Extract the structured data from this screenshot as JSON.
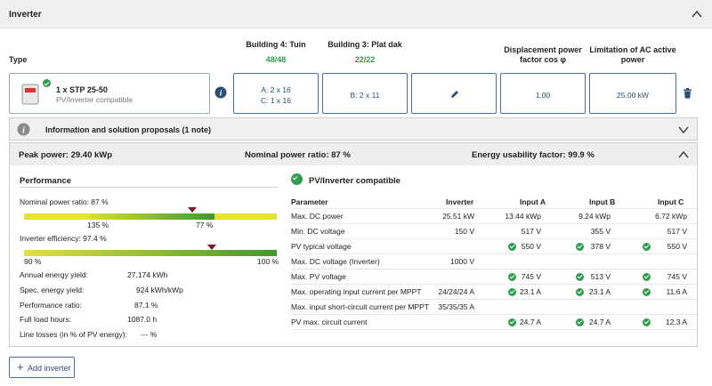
{
  "header": {
    "title": "Inverter"
  },
  "columns": {
    "type": "Type",
    "building4": {
      "name": "Building 4: Tuin",
      "count": "48/48"
    },
    "building3": {
      "name": "Building 3: Plat dak",
      "count": "22/22"
    },
    "displacement": "Displacement power factor cos φ",
    "limitation": "Limitation of AC active power"
  },
  "inverter": {
    "name": "1 x STP 25-50",
    "status": "PV/Inverter compatible",
    "b4_line1": "A: 2 x 16",
    "b4_line2": "C: 1 x 16",
    "b3_line1": "B: 2 x 11",
    "cos_phi": "1.00",
    "ac_limit": "25.00 kW"
  },
  "info_bar": {
    "label": "Information and solution proposals (1 note)"
  },
  "summary": {
    "peak_power": "Peak power: 29.40 kWp",
    "nominal_ratio": "Nominal power ratio: 87 %",
    "energy_factor": "Energy usability factor: 99.9 %"
  },
  "performance": {
    "title": "Performance",
    "nominal_label": "Nominal power ratio: 87 %",
    "nominal_left": "135 %",
    "nominal_right": "77 %",
    "nominal_value_pct": 87,
    "efficiency_label": "Inverter efficiency: 97.4 %",
    "efficiency_left": "90 %",
    "efficiency_right": "100 %",
    "efficiency_value_pct": 97.4,
    "rows": [
      {
        "label": "Annual energy yield:",
        "value": "27,174 kWh"
      },
      {
        "label": "Spec. energy yield:",
        "value": "924 kWh/kWp"
      },
      {
        "label": "Performance ratio:",
        "value": "87.1 %"
      },
      {
        "label": "Full load hours:",
        "value": "1087.0 h"
      },
      {
        "label": "Line losses (in % of PV energy):",
        "value": "--- %"
      }
    ]
  },
  "compat": {
    "title": "PV/Inverter compatible",
    "headers": [
      "Parameter",
      "Inverter",
      "Input A",
      "Input B",
      "Input C"
    ],
    "rows": [
      {
        "p": "Max. DC power",
        "inv": "25.51 kW",
        "a": "13.44 kWp",
        "b": "9.24 kWp",
        "c": "6.72 kWp",
        "ok": false
      },
      {
        "p": "Min. DC voltage",
        "inv": "150 V",
        "a": "517 V",
        "b": "355 V",
        "c": "517 V",
        "ok": false
      },
      {
        "p": "PV typical voltage",
        "inv": "",
        "a": "550 V",
        "b": "378 V",
        "c": "550 V",
        "ok": true
      },
      {
        "p": "Max. DC voltage (Inverter)",
        "inv": "1000 V",
        "a": "",
        "b": "",
        "c": "",
        "ok": false
      },
      {
        "p": "Max. PV voltage",
        "inv": "",
        "a": "745 V",
        "b": "513 V",
        "c": "745 V",
        "ok": true
      },
      {
        "p": "Max. operating input current per MPPT",
        "inv": "24/24/24 A",
        "a": "23.1 A",
        "b": "23.1 A",
        "c": "11.6 A",
        "ok": true
      },
      {
        "p": "Max. input short-circuit current per MPPT",
        "inv": "35/35/35 A",
        "a": "",
        "b": "",
        "c": "",
        "ok": false
      },
      {
        "p": "PV max. circuit current",
        "inv": "",
        "a": "24.7 A",
        "b": "24.7 A",
        "c": "12.3 A",
        "ok": true
      }
    ]
  },
  "add_button": {
    "label": "Add inverter"
  }
}
